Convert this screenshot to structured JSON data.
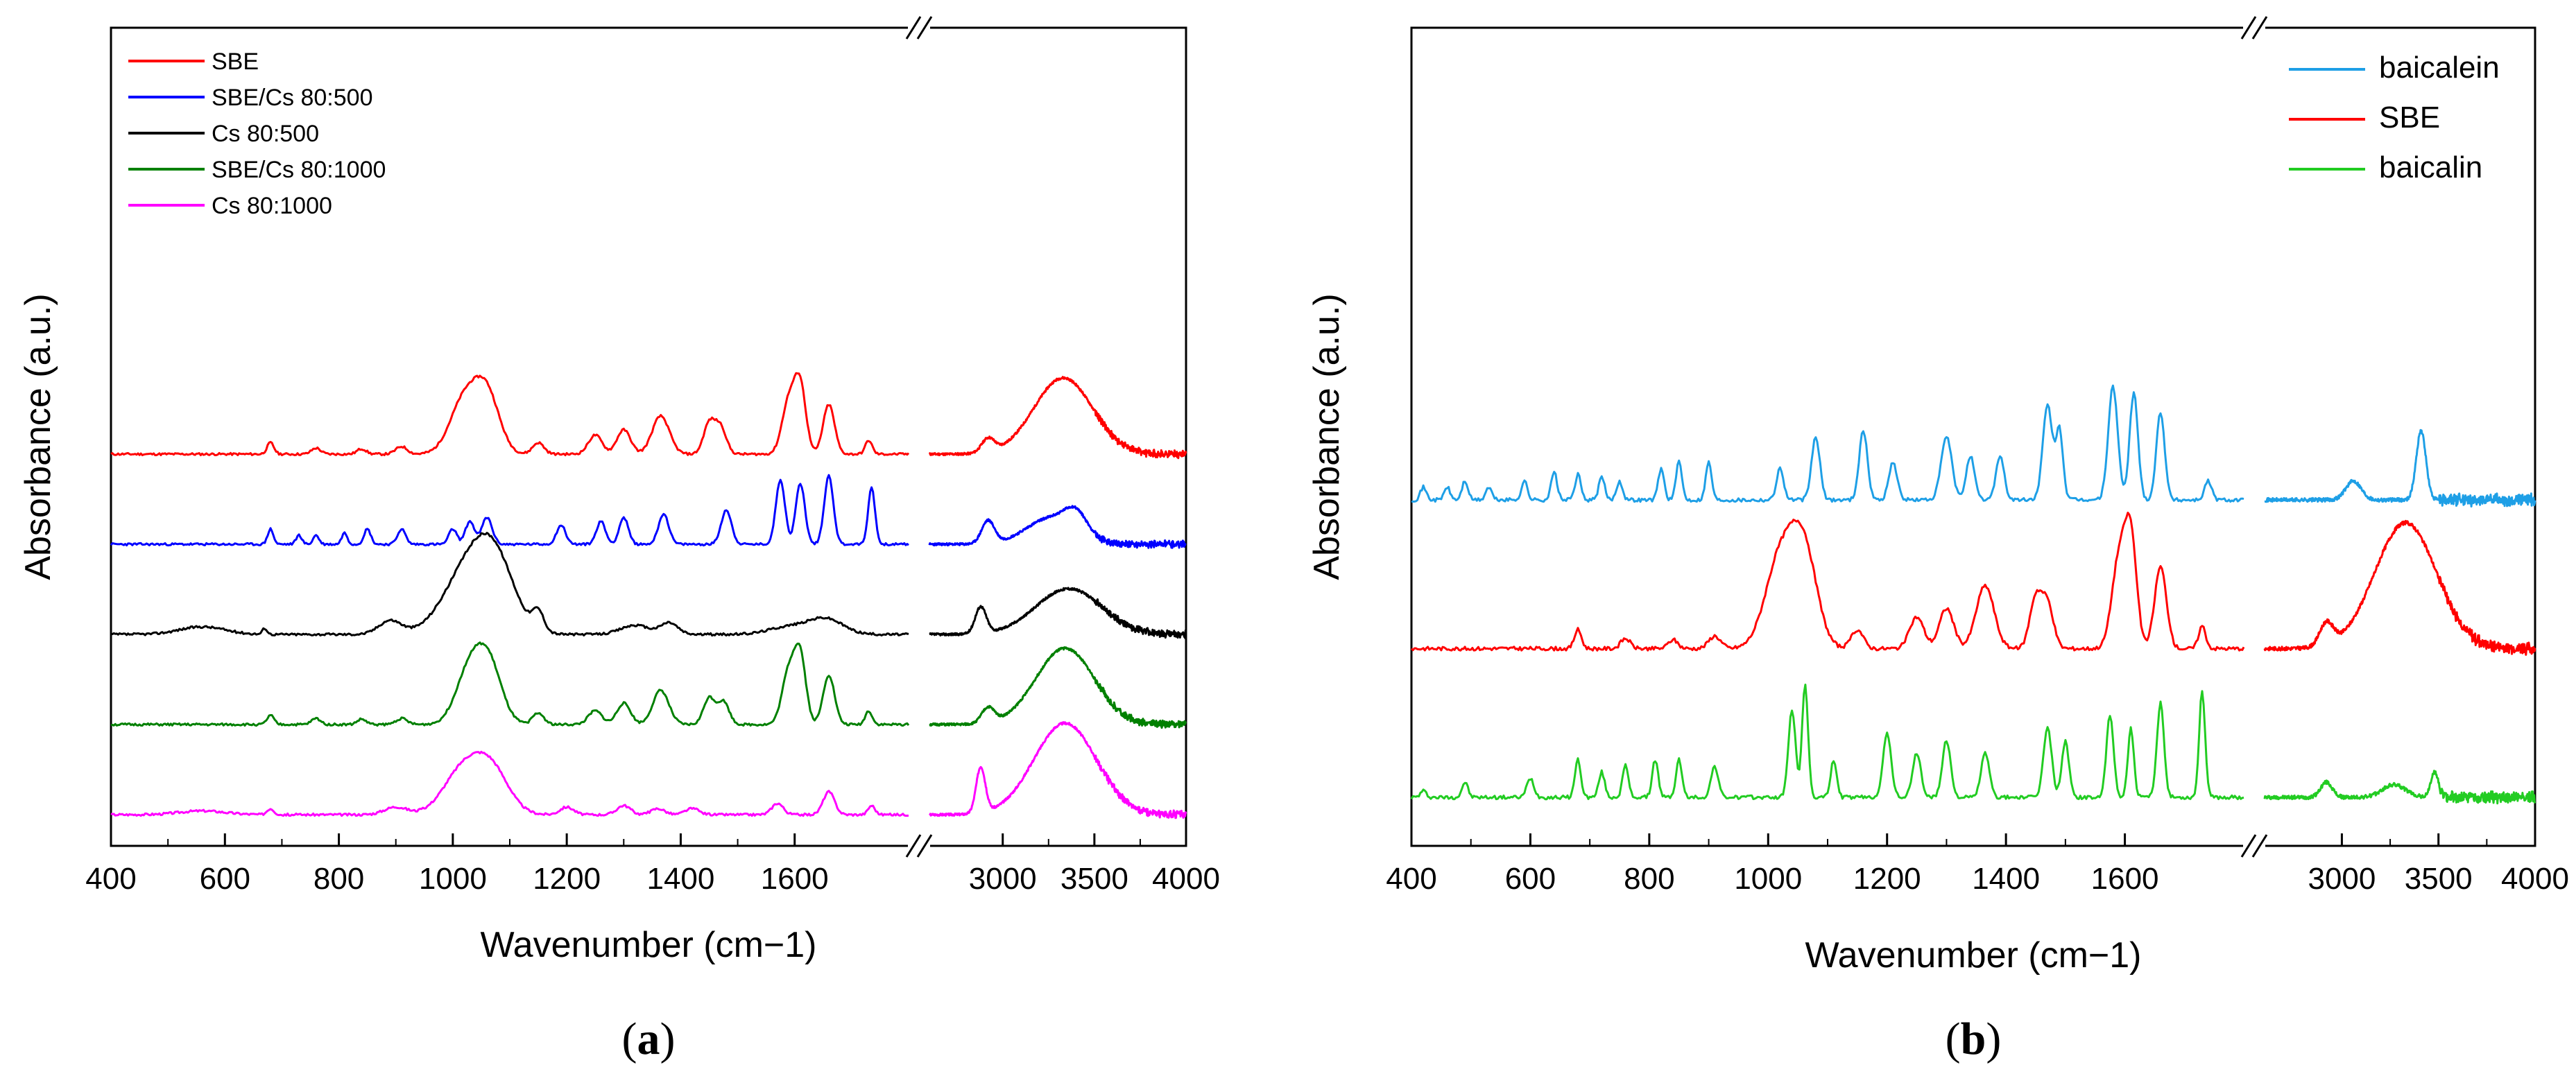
{
  "chart_data": [
    {
      "type": "line",
      "panel_label": "(a)",
      "label_letter": "a",
      "xlabel": "Wavenumber (cm−1)",
      "ylabel": "Absorbance (a.u.)",
      "x_ranges": [
        [
          400,
          1800
        ],
        [
          2600,
          4000
        ]
      ],
      "x_ticks_low": [
        400,
        600,
        800,
        1000,
        1200,
        1400,
        1600
      ],
      "x_ticks_high": [
        3000,
        3500,
        4000
      ],
      "y_unit": "a.u. (offset)",
      "series": [
        {
          "name": "SBE",
          "color": "#ff0000",
          "offset": 4.0,
          "seed": 11,
          "peaks": [
            [
              680,
              0.15,
              6
            ],
            [
              760,
              0.08,
              8
            ],
            [
              840,
              0.07,
              8
            ],
            [
              910,
              0.1,
              10
            ],
            [
              1020,
              0.7,
              25
            ],
            [
              1060,
              0.75,
              22
            ],
            [
              1150,
              0.15,
              10
            ],
            [
              1250,
              0.25,
              12
            ],
            [
              1300,
              0.32,
              12
            ],
            [
              1365,
              0.5,
              15
            ],
            [
              1450,
              0.4,
              10
            ],
            [
              1470,
              0.35,
              10
            ],
            [
              1590,
              0.7,
              12
            ],
            [
              1610,
              0.85,
              10
            ],
            [
              1660,
              0.65,
              10
            ],
            [
              1730,
              0.18,
              6
            ],
            [
              2920,
              0.18,
              35
            ],
            [
              3330,
              1.0,
              160
            ]
          ]
        },
        {
          "name": "SBE/Cs 80:500",
          "color": "#0000ff",
          "offset": 3.0,
          "seed": 23,
          "peaks": [
            [
              680,
              0.2,
              5
            ],
            [
              730,
              0.12,
              5
            ],
            [
              760,
              0.12,
              5
            ],
            [
              810,
              0.15,
              5
            ],
            [
              850,
              0.2,
              6
            ],
            [
              910,
              0.2,
              7
            ],
            [
              1000,
              0.2,
              7
            ],
            [
              1030,
              0.3,
              8
            ],
            [
              1060,
              0.35,
              9
            ],
            [
              1190,
              0.25,
              8
            ],
            [
              1260,
              0.3,
              8
            ],
            [
              1300,
              0.35,
              8
            ],
            [
              1370,
              0.4,
              9
            ],
            [
              1480,
              0.45,
              9
            ],
            [
              1575,
              0.85,
              8
            ],
            [
              1610,
              0.8,
              8
            ],
            [
              1660,
              0.9,
              8
            ],
            [
              1735,
              0.75,
              6
            ],
            [
              2920,
              0.3,
              35
            ],
            [
              3270,
              0.35,
              140
            ],
            [
              3400,
              0.25,
              60
            ]
          ]
        },
        {
          "name": "Cs 80:500",
          "color": "#000000",
          "offset": 2.0,
          "seed": 37,
          "peaks": [
            [
              560,
              0.1,
              40
            ],
            [
              670,
              0.08,
              4
            ],
            [
              890,
              0.18,
              20
            ],
            [
              1030,
              0.85,
              45
            ],
            [
              1075,
              0.7,
              35
            ],
            [
              1150,
              0.25,
              10
            ],
            [
              1320,
              0.12,
              25
            ],
            [
              1380,
              0.15,
              15
            ],
            [
              1590,
              0.1,
              35
            ],
            [
              1655,
              0.2,
              30
            ],
            [
              2880,
              0.35,
              30
            ],
            [
              3360,
              0.6,
              180
            ]
          ]
        },
        {
          "name": "SBE/Cs 80:1000",
          "color": "#008000",
          "offset": 1.0,
          "seed": 51,
          "peaks": [
            [
              680,
              0.12,
              6
            ],
            [
              760,
              0.08,
              8
            ],
            [
              840,
              0.07,
              8
            ],
            [
              910,
              0.08,
              10
            ],
            [
              1030,
              0.72,
              24
            ],
            [
              1065,
              0.7,
              22
            ],
            [
              1150,
              0.15,
              10
            ],
            [
              1250,
              0.18,
              12
            ],
            [
              1300,
              0.28,
              12
            ],
            [
              1365,
              0.45,
              14
            ],
            [
              1450,
              0.35,
              10
            ],
            [
              1475,
              0.3,
              10
            ],
            [
              1590,
              0.7,
              12
            ],
            [
              1610,
              0.85,
              10
            ],
            [
              1660,
              0.65,
              10
            ],
            [
              1730,
              0.18,
              6
            ],
            [
              2920,
              0.2,
              35
            ],
            [
              3340,
              1.0,
              160
            ]
          ]
        },
        {
          "name": "Cs 80:1000",
          "color": "#ff00ff",
          "offset": 0.0,
          "seed": 67,
          "peaks": [
            [
              560,
              0.05,
              40
            ],
            [
              680,
              0.08,
              6
            ],
            [
              900,
              0.1,
              20
            ],
            [
              1020,
              0.6,
              35
            ],
            [
              1070,
              0.5,
              30
            ],
            [
              1200,
              0.1,
              12
            ],
            [
              1300,
              0.12,
              12
            ],
            [
              1360,
              0.08,
              12
            ],
            [
              1420,
              0.08,
              12
            ],
            [
              1570,
              0.15,
              10
            ],
            [
              1660,
              0.3,
              10
            ],
            [
              1735,
              0.12,
              6
            ],
            [
              2880,
              0.6,
              25
            ],
            [
              3340,
              1.2,
              170
            ]
          ]
        }
      ]
    },
    {
      "type": "line",
      "panel_label": "(b)",
      "label_letter": "b",
      "xlabel": "Wavenumber (cm−1)",
      "ylabel": "Absorbance (a.u.)",
      "x_ranges": [
        [
          400,
          1800
        ],
        [
          2600,
          4000
        ]
      ],
      "x_ticks_low": [
        400,
        600,
        800,
        1000,
        1200,
        1400,
        1600
      ],
      "x_ticks_high": [
        3000,
        3500,
        4000
      ],
      "y_unit": "a.u. (offset)",
      "series": [
        {
          "name": "baicalein",
          "color": "#1e9fe6",
          "offset": 2.0,
          "seed": 71,
          "peaks": [
            [
              420,
              0.1,
              5
            ],
            [
              460,
              0.1,
              5
            ],
            [
              490,
              0.15,
              5
            ],
            [
              530,
              0.1,
              5
            ],
            [
              590,
              0.15,
              5
            ],
            [
              640,
              0.22,
              5
            ],
            [
              680,
              0.2,
              5
            ],
            [
              720,
              0.18,
              5
            ],
            [
              750,
              0.15,
              5
            ],
            [
              820,
              0.25,
              5
            ],
            [
              850,
              0.3,
              5
            ],
            [
              900,
              0.3,
              5
            ],
            [
              1020,
              0.25,
              6
            ],
            [
              1080,
              0.5,
              7
            ],
            [
              1160,
              0.55,
              7
            ],
            [
              1210,
              0.3,
              7
            ],
            [
              1300,
              0.5,
              9
            ],
            [
              1340,
              0.35,
              7
            ],
            [
              1390,
              0.35,
              7
            ],
            [
              1470,
              0.75,
              8
            ],
            [
              1490,
              0.55,
              6
            ],
            [
              1580,
              0.9,
              8
            ],
            [
              1615,
              0.85,
              7
            ],
            [
              1660,
              0.7,
              7
            ],
            [
              1740,
              0.15,
              6
            ],
            [
              3060,
              0.15,
              40
            ],
            [
              3410,
              0.55,
              25
            ]
          ]
        },
        {
          "name": "SBE",
          "color": "#ff0000",
          "offset": 1.0,
          "seed": 83,
          "peaks": [
            [
              680,
              0.15,
              6
            ],
            [
              760,
              0.08,
              8
            ],
            [
              840,
              0.07,
              8
            ],
            [
              910,
              0.1,
              10
            ],
            [
              1020,
              0.7,
              25
            ],
            [
              1060,
              0.75,
              22
            ],
            [
              1150,
              0.15,
              10
            ],
            [
              1250,
              0.25,
              12
            ],
            [
              1300,
              0.32,
              12
            ],
            [
              1365,
              0.5,
              15
            ],
            [
              1450,
              0.4,
              10
            ],
            [
              1470,
              0.35,
              10
            ],
            [
              1590,
              0.7,
              12
            ],
            [
              1610,
              0.85,
              10
            ],
            [
              1660,
              0.65,
              10
            ],
            [
              1730,
              0.18,
              6
            ],
            [
              2920,
              0.18,
              35
            ],
            [
              3330,
              1.0,
              160
            ]
          ]
        },
        {
          "name": "baicalin",
          "color": "#22cc22",
          "offset": 0.0,
          "seed": 97,
          "peaks": [
            [
              420,
              0.05,
              5
            ],
            [
              490,
              0.12,
              5
            ],
            [
              600,
              0.15,
              6
            ],
            [
              680,
              0.3,
              5
            ],
            [
              720,
              0.2,
              5
            ],
            [
              760,
              0.25,
              5
            ],
            [
              810,
              0.3,
              5
            ],
            [
              850,
              0.3,
              5
            ],
            [
              910,
              0.25,
              6
            ],
            [
              1040,
              0.7,
              6
            ],
            [
              1062,
              0.9,
              5
            ],
            [
              1110,
              0.3,
              5
            ],
            [
              1200,
              0.5,
              7
            ],
            [
              1250,
              0.35,
              7
            ],
            [
              1300,
              0.45,
              7
            ],
            [
              1365,
              0.35,
              7
            ],
            [
              1470,
              0.55,
              7
            ],
            [
              1500,
              0.45,
              6
            ],
            [
              1575,
              0.65,
              6
            ],
            [
              1610,
              0.55,
              5
            ],
            [
              1660,
              0.75,
              6
            ],
            [
              1730,
              0.85,
              5
            ],
            [
              2920,
              0.12,
              30
            ],
            [
              3270,
              0.1,
              60
            ],
            [
              3480,
              0.2,
              20
            ]
          ]
        }
      ]
    }
  ]
}
